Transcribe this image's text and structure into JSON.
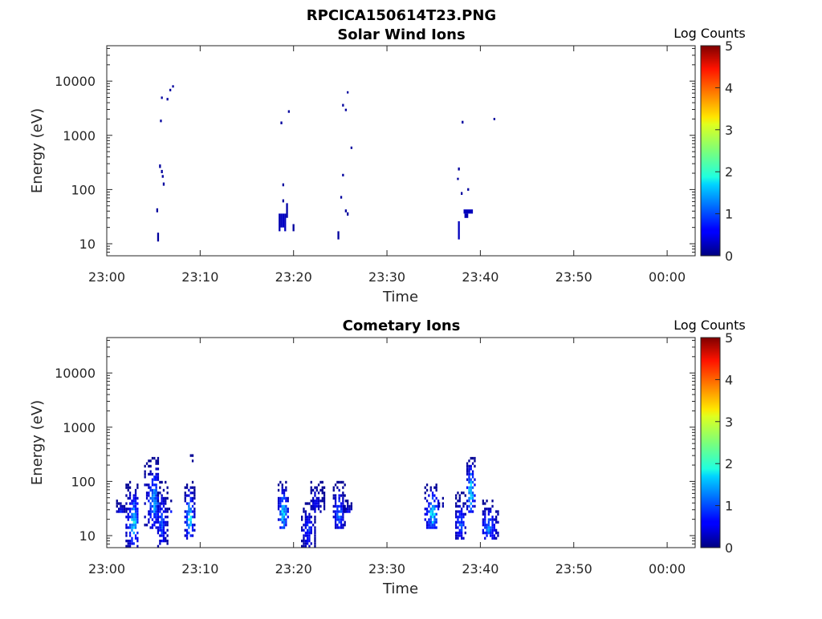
{
  "figure_title": "RPCICA150614T23.PNG",
  "colorbar": {
    "label": "Log Counts",
    "min": 0,
    "max": 5,
    "ticks": [
      "0",
      "1",
      "2",
      "3",
      "4",
      "5"
    ],
    "colormap": "jet"
  },
  "chart_data": [
    {
      "type": "heatmap",
      "title": "Solar Wind Ions",
      "xlabel": "Time",
      "ylabel": "Energy (eV)",
      "x_ticks": [
        "23:00",
        "23:10",
        "23:20",
        "23:30",
        "23:40",
        "23:50",
        "00:00"
      ],
      "x_tick_minutes": [
        0,
        10,
        20,
        30,
        40,
        50,
        60
      ],
      "xlim_minutes": [
        0,
        63
      ],
      "y_scale": "log",
      "ylim": [
        6,
        45000
      ],
      "y_ticks": [
        "10",
        "100",
        "1000",
        "10000"
      ],
      "y_tick_values": [
        10,
        100,
        1000,
        10000
      ],
      "cells": [
        {
          "t_min": 5.3,
          "t_max": 5.5,
          "e_min": 38,
          "e_max": 45,
          "log_counts": 0.15
        },
        {
          "t_min": 5.4,
          "t_max": 5.6,
          "e_min": 11,
          "e_max": 16,
          "log_counts": 0.15
        },
        {
          "t_min": 5.6,
          "t_max": 5.8,
          "e_min": 250,
          "e_max": 290,
          "log_counts": 0.15
        },
        {
          "t_min": 5.8,
          "t_max": 6.0,
          "e_min": 200,
          "e_max": 230,
          "log_counts": 0.15
        },
        {
          "t_min": 5.9,
          "t_max": 6.1,
          "e_min": 165,
          "e_max": 185,
          "log_counts": 0.15
        },
        {
          "t_min": 6.0,
          "t_max": 6.2,
          "e_min": 118,
          "e_max": 135,
          "log_counts": 0.15
        },
        {
          "t_min": 5.7,
          "t_max": 5.9,
          "e_min": 1750,
          "e_max": 1950,
          "log_counts": 0.15
        },
        {
          "t_min": 5.8,
          "t_max": 6.0,
          "e_min": 4700,
          "e_max": 5200,
          "log_counts": 0.15
        },
        {
          "t_min": 6.4,
          "t_max": 6.6,
          "e_min": 4400,
          "e_max": 4900,
          "log_counts": 0.15
        },
        {
          "t_min": 6.7,
          "t_max": 6.9,
          "e_min": 6500,
          "e_max": 7200,
          "log_counts": 0.15
        },
        {
          "t_min": 7.0,
          "t_max": 7.2,
          "e_min": 7600,
          "e_max": 8400,
          "log_counts": 0.15
        },
        {
          "t_min": 18.4,
          "t_max": 18.6,
          "e_min": 17,
          "e_max": 36,
          "log_counts": 0.25
        },
        {
          "t_min": 18.6,
          "t_max": 18.8,
          "e_min": 20,
          "e_max": 36,
          "log_counts": 0.3
        },
        {
          "t_min": 18.8,
          "t_max": 19.0,
          "e_min": 20,
          "e_max": 36,
          "log_counts": 0.35
        },
        {
          "t_min": 19.0,
          "t_max": 19.2,
          "e_min": 17,
          "e_max": 36,
          "log_counts": 0.3
        },
        {
          "t_min": 19.2,
          "t_max": 19.4,
          "e_min": 30,
          "e_max": 56,
          "log_counts": 0.2
        },
        {
          "t_min": 18.8,
          "t_max": 19.0,
          "e_min": 58,
          "e_max": 66,
          "log_counts": 0.15
        },
        {
          "t_min": 18.8,
          "t_max": 19.0,
          "e_min": 115,
          "e_max": 130,
          "log_counts": 0.15
        },
        {
          "t_min": 19.9,
          "t_max": 20.1,
          "e_min": 17,
          "e_max": 23,
          "log_counts": 0.15
        },
        {
          "t_min": 18.6,
          "t_max": 18.8,
          "e_min": 1600,
          "e_max": 1800,
          "log_counts": 0.15
        },
        {
          "t_min": 19.4,
          "t_max": 19.6,
          "e_min": 2600,
          "e_max": 2900,
          "log_counts": 0.15
        },
        {
          "t_min": 24.7,
          "t_max": 24.9,
          "e_min": 12,
          "e_max": 17,
          "log_counts": 0.15
        },
        {
          "t_min": 25.0,
          "t_max": 25.2,
          "e_min": 68,
          "e_max": 76,
          "log_counts": 0.15
        },
        {
          "t_min": 25.2,
          "t_max": 25.4,
          "e_min": 175,
          "e_max": 195,
          "log_counts": 0.15
        },
        {
          "t_min": 25.5,
          "t_max": 25.7,
          "e_min": 38,
          "e_max": 43,
          "log_counts": 0.15
        },
        {
          "t_min": 25.7,
          "t_max": 25.9,
          "e_min": 33,
          "e_max": 38,
          "log_counts": 0.15
        },
        {
          "t_min": 26.1,
          "t_max": 26.3,
          "e_min": 560,
          "e_max": 620,
          "log_counts": 0.15
        },
        {
          "t_min": 25.2,
          "t_max": 25.4,
          "e_min": 3400,
          "e_max": 3800,
          "log_counts": 0.15
        },
        {
          "t_min": 25.5,
          "t_max": 25.7,
          "e_min": 2800,
          "e_max": 3100,
          "log_counts": 0.15
        },
        {
          "t_min": 25.7,
          "t_max": 25.9,
          "e_min": 5900,
          "e_max": 6500,
          "log_counts": 0.15
        },
        {
          "t_min": 37.6,
          "t_max": 37.8,
          "e_min": 12,
          "e_max": 26,
          "log_counts": 0.3
        },
        {
          "t_min": 37.6,
          "t_max": 37.8,
          "e_min": 225,
          "e_max": 255,
          "log_counts": 0.15
        },
        {
          "t_min": 37.5,
          "t_max": 37.7,
          "e_min": 150,
          "e_max": 165,
          "log_counts": 0.15
        },
        {
          "t_min": 37.9,
          "t_max": 38.1,
          "e_min": 80,
          "e_max": 90,
          "log_counts": 0.15
        },
        {
          "t_min": 38.0,
          "t_max": 38.2,
          "e_min": 1650,
          "e_max": 1850,
          "log_counts": 0.15
        },
        {
          "t_min": 38.2,
          "t_max": 39.2,
          "e_min": 36,
          "e_max": 43,
          "log_counts": 0.3
        },
        {
          "t_min": 38.3,
          "t_max": 38.7,
          "e_min": 30,
          "e_max": 36,
          "log_counts": 0.25
        },
        {
          "t_min": 38.6,
          "t_max": 38.8,
          "e_min": 95,
          "e_max": 106,
          "log_counts": 0.15
        },
        {
          "t_min": 41.4,
          "t_max": 41.6,
          "e_min": 1900,
          "e_max": 2100,
          "log_counts": 0.15
        }
      ]
    },
    {
      "type": "heatmap",
      "title": "Cometary Ions",
      "xlabel": "Time",
      "ylabel": "Energy (eV)",
      "x_ticks": [
        "23:00",
        "23:10",
        "23:20",
        "23:30",
        "23:40",
        "23:50",
        "00:00"
      ],
      "x_tick_minutes": [
        0,
        10,
        20,
        30,
        40,
        50,
        60
      ],
      "xlim_minutes": [
        0,
        63
      ],
      "y_scale": "log",
      "ylim": [
        6,
        45000
      ],
      "y_ticks": [
        "10",
        "100",
        "1000",
        "10000"
      ],
      "y_tick_values": [
        10,
        100,
        1000,
        10000
      ],
      "bursts": [
        {
          "t_start": 1.0,
          "t_end": 2.0,
          "e_min": 25,
          "e_max": 45,
          "peak_t": 1.4,
          "peak_log_counts": 0.9
        },
        {
          "t_start": 2.0,
          "t_end": 3.4,
          "e_min": 6,
          "e_max": 95,
          "peak_t": 2.8,
          "peak_log_counts": 1.9
        },
        {
          "t_start": 4.0,
          "t_end": 5.6,
          "e_min": 12,
          "e_max": 280,
          "peak_t": 5.0,
          "peak_log_counts": 1.6
        },
        {
          "t_start": 5.4,
          "t_end": 6.5,
          "e_min": 6,
          "e_max": 95,
          "peak_t": 5.8,
          "peak_log_counts": 1.2
        },
        {
          "t_start": 6.6,
          "t_end": 7.0,
          "e_min": 25,
          "e_max": 45,
          "peak_t": 6.8,
          "peak_log_counts": 0.8
        },
        {
          "t_start": 8.3,
          "t_end": 9.3,
          "e_min": 8,
          "e_max": 100,
          "peak_t": 8.8,
          "peak_log_counts": 2.0
        },
        {
          "t_start": 8.9,
          "t_end": 9.3,
          "e_min": 220,
          "e_max": 290,
          "peak_t": 9.1,
          "peak_log_counts": 0.3
        },
        {
          "t_start": 18.3,
          "t_end": 19.4,
          "e_min": 12,
          "e_max": 100,
          "peak_t": 18.8,
          "peak_log_counts": 2.1
        },
        {
          "t_start": 20.8,
          "t_end": 22.2,
          "e_min": 6,
          "e_max": 45,
          "peak_t": 21.5,
          "peak_log_counts": 1.0
        },
        {
          "t_start": 21.8,
          "t_end": 23.2,
          "e_min": 25,
          "e_max": 100,
          "peak_t": 22.3,
          "peak_log_counts": 0.7
        },
        {
          "t_start": 24.2,
          "t_end": 25.4,
          "e_min": 12,
          "e_max": 100,
          "peak_t": 24.8,
          "peak_log_counts": 1.3
        },
        {
          "t_start": 25.3,
          "t_end": 26.2,
          "e_min": 25,
          "e_max": 45,
          "peak_t": 25.8,
          "peak_log_counts": 0.8
        },
        {
          "t_start": 34.0,
          "t_end": 35.6,
          "e_min": 12,
          "e_max": 90,
          "peak_t": 34.8,
          "peak_log_counts": 2.0
        },
        {
          "t_start": 35.5,
          "t_end": 36.0,
          "e_min": 30,
          "e_max": 48,
          "peak_t": 35.7,
          "peak_log_counts": 1.3
        },
        {
          "t_start": 37.3,
          "t_end": 38.5,
          "e_min": 8,
          "e_max": 60,
          "peak_t": 37.8,
          "peak_log_counts": 1.2
        },
        {
          "t_start": 38.5,
          "t_end": 39.4,
          "e_min": 25,
          "e_max": 280,
          "peak_t": 38.9,
          "peak_log_counts": 2.2
        },
        {
          "t_start": 40.2,
          "t_end": 42.0,
          "e_min": 8,
          "e_max": 45,
          "peak_t": 40.8,
          "peak_log_counts": 1.4
        }
      ]
    }
  ]
}
